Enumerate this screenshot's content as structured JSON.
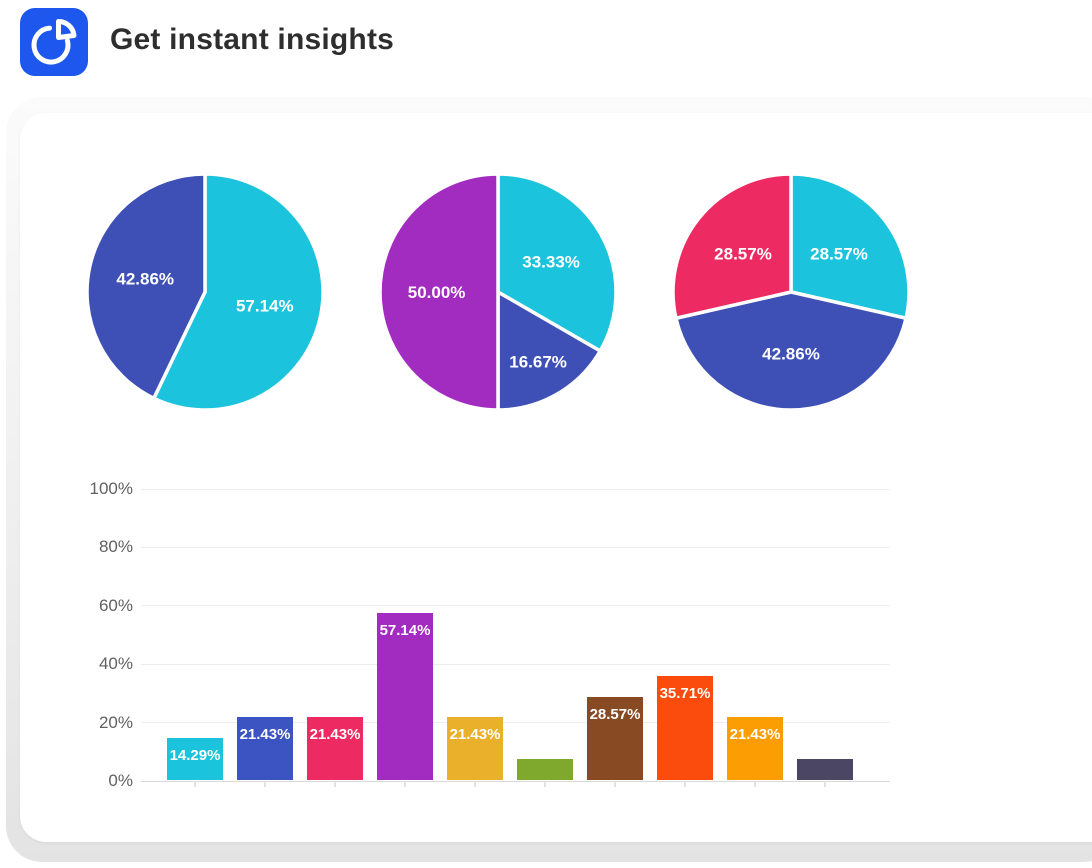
{
  "header": {
    "title": "Get instant insights",
    "icon": "pie-chart-icon",
    "icon_bg": "#1e57ed"
  },
  "card": {
    "background": "#ffffff",
    "backplate_color": "#e9e9e9"
  },
  "chart_data": [
    {
      "type": "pie",
      "name": "pie-chart-1",
      "slice_label_color": "#ffffff",
      "slices": [
        {
          "value": 57.14,
          "label": "57.14%",
          "color": "#1cc3dc"
        },
        {
          "value": 42.86,
          "label": "42.86%",
          "color": "#3e50b6"
        }
      ]
    },
    {
      "type": "pie",
      "name": "pie-chart-2",
      "slice_label_color": "#ffffff",
      "slices": [
        {
          "value": 33.33,
          "label": "33.33%",
          "color": "#1cc3dc"
        },
        {
          "value": 16.67,
          "label": "16.67%",
          "color": "#3e50b6"
        },
        {
          "value": 50.0,
          "label": "50.00%",
          "color": "#a22bc0"
        }
      ]
    },
    {
      "type": "pie",
      "name": "pie-chart-3",
      "slice_label_color": "#ffffff",
      "slices": [
        {
          "value": 28.57,
          "label": "28.57%",
          "color": "#1cc3dc"
        },
        {
          "value": 42.86,
          "label": "42.86%",
          "color": "#3e50b6"
        },
        {
          "value": 28.57,
          "label": "28.57%",
          "color": "#ee2a62"
        }
      ]
    },
    {
      "type": "bar",
      "name": "bar-chart",
      "ylim": [
        0,
        100
      ],
      "y_ticks": [
        "0%",
        "20%",
        "40%",
        "60%",
        "80%",
        "100%"
      ],
      "grid": true,
      "legend": false,
      "bar_label_color": "#ffffff",
      "axis_label_color": "#616161",
      "values": [
        14.29,
        21.43,
        21.43,
        57.14,
        21.43,
        7.14,
        28.57,
        35.71,
        21.43,
        7.14
      ],
      "labels": [
        "14.29%",
        "21.43%",
        "21.43%",
        "57.14%",
        "21.43%",
        "",
        "28.57%",
        "35.71%",
        "21.43%",
        ""
      ],
      "colors": [
        "#1cc3dc",
        "#3b54c1",
        "#ee2a62",
        "#a22bc0",
        "#eab02b",
        "#7fa92d",
        "#874a23",
        "#fb4c0d",
        "#fc9e03",
        "#4b4663"
      ]
    }
  ]
}
